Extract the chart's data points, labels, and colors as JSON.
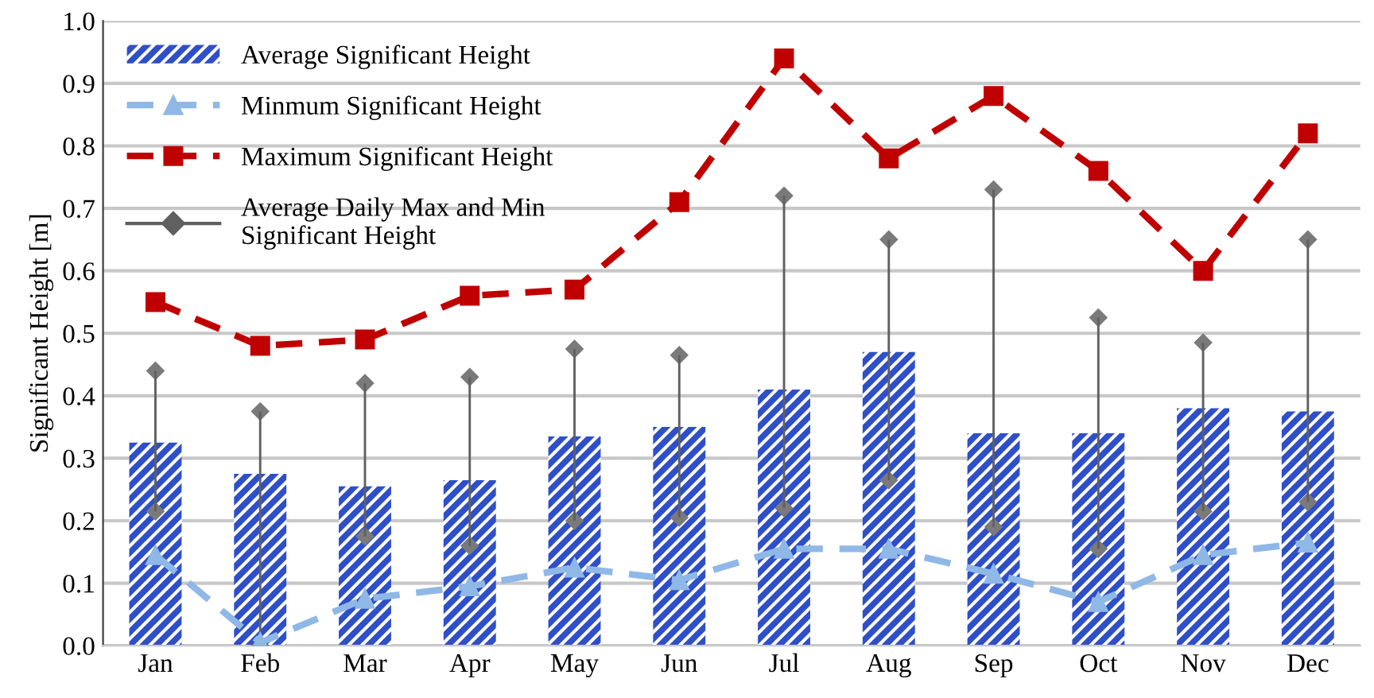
{
  "chart_data": {
    "type": "bar",
    "ylabel": "Significant Height [m]",
    "categories": [
      "Jan",
      "Feb",
      "Mar",
      "Apr",
      "May",
      "Jun",
      "Jul",
      "Aug",
      "Sep",
      "Oct",
      "Nov",
      "Dec"
    ],
    "series": [
      {
        "name": "Average Significant Height",
        "color": "#2f4fc8",
        "values": [
          0.325,
          0.275,
          0.255,
          0.265,
          0.335,
          0.35,
          0.41,
          0.47,
          0.34,
          0.34,
          0.38,
          0.375
        ]
      },
      {
        "name": "Minmum Significant Height",
        "type": "line",
        "color": "#8fb8e6",
        "marker": "triangle",
        "line_style": "dashed",
        "values": [
          0.145,
          0.005,
          0.075,
          0.095,
          0.125,
          0.105,
          0.155,
          0.155,
          0.115,
          0.07,
          0.145,
          0.165
        ]
      },
      {
        "name": "Maximum Significant Height",
        "type": "line",
        "color": "#c00000",
        "marker": "square",
        "line_style": "dashed",
        "values": [
          0.55,
          0.48,
          0.49,
          0.56,
          0.57,
          0.71,
          0.94,
          0.78,
          0.88,
          0.76,
          0.6,
          0.82
        ]
      },
      {
        "name": "Average Daily Max and Min\nSignificant Height",
        "color": "#606060",
        "marker": "diamond",
        "base": [
          0.215,
          0.0,
          0.175,
          0.16,
          0.2,
          0.205,
          0.22,
          0.265,
          0.19,
          0.155,
          0.215,
          0.23
        ],
        "values": [
          0.225,
          0.375,
          0.245,
          0.27,
          0.275,
          0.26,
          0.5,
          0.385,
          0.54,
          0.37,
          0.27,
          0.42
        ]
      }
    ],
    "ylim": [
      0,
      1.0
    ],
    "yticks": [
      {
        "value": 0,
        "label": "0.0"
      },
      0.1,
      0.2,
      0.3,
      0.4,
      0.5,
      0.6,
      0.7,
      0.8,
      0.9,
      {
        "value": 1.0,
        "label": "1.0"
      }
    ],
    "grid": "y",
    "legend": "top left"
  }
}
